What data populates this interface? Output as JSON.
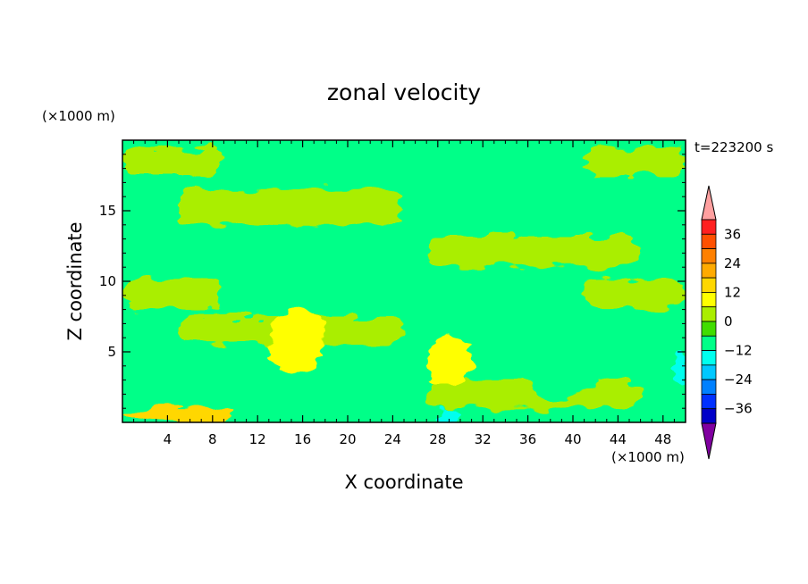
{
  "chart_data": {
    "type": "heatmap",
    "title": "zonal velocity",
    "xlabel": "X coordinate",
    "ylabel": "Z coordinate",
    "x_unit": "(×1000 m)",
    "y_unit": "(×1000 m)",
    "time_label": "t=223200 s",
    "xlim": [
      0,
      50
    ],
    "ylim": [
      0,
      20
    ],
    "x_ticks": [
      "4",
      "8",
      "12",
      "16",
      "20",
      "24",
      "28",
      "32",
      "36",
      "40",
      "44",
      "48"
    ],
    "y_ticks": [
      "5",
      "10",
      "15"
    ],
    "colorbar": {
      "levels": [
        -42,
        -36,
        -30,
        -24,
        -18,
        -12,
        -6,
        0,
        6,
        12,
        18,
        24,
        30,
        36,
        42
      ],
      "tick_labels": [
        "36",
        "24",
        "12",
        "0",
        "-12",
        "-24",
        "-36"
      ],
      "colors": [
        "#ffa0a0",
        "#ff2020",
        "#ff5000",
        "#ff8000",
        "#ffaa00",
        "#ffd700",
        "#ffff00",
        "#aaee00",
        "#40dd00",
        "#00ff88",
        "#00ffee",
        "#00c8ff",
        "#0080ff",
        "#0030ff",
        "#0000c8",
        "#202080",
        "#8000a0"
      ],
      "extend": "both"
    },
    "field_regions": [
      {
        "x": [
          0,
          6
        ],
        "z": [
          1.5,
          6
        ],
        "value": -12
      },
      {
        "x": [
          0,
          10
        ],
        "z": [
          0,
          1.2
        ],
        "value": 12
      },
      {
        "x": [
          13,
          18
        ],
        "z": [
          3.5,
          8
        ],
        "value": 6
      },
      {
        "x": [
          27,
          31
        ],
        "z": [
          2.5,
          6
        ],
        "value": 6
      },
      {
        "x": [
          13,
          17
        ],
        "z": [
          0,
          1
        ],
        "value": -12
      },
      {
        "x": [
          28,
          30
        ],
        "z": [
          0,
          1
        ],
        "value": -18
      },
      {
        "x": [
          36,
          42
        ],
        "z": [
          1.5,
          5
        ],
        "value": -12
      },
      {
        "x": [
          49,
          50
        ],
        "z": [
          2.5,
          5
        ],
        "value": -18
      }
    ]
  }
}
